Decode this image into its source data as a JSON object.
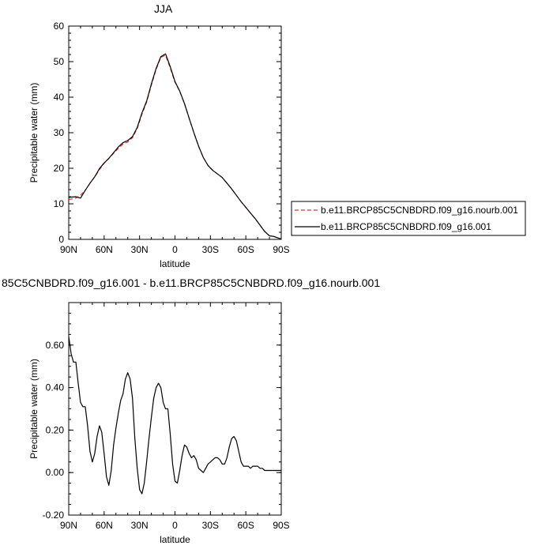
{
  "chart_data": [
    {
      "type": "line",
      "title": "JJA",
      "xlabel": "latitude",
      "ylabel": "Precipitable water (mm)",
      "x_ticks": [
        {
          "value": 90,
          "label": "90N"
        },
        {
          "value": 60,
          "label": "60N"
        },
        {
          "value": 30,
          "label": "30N"
        },
        {
          "value": 0,
          "label": "0"
        },
        {
          "value": -30,
          "label": "30S"
        },
        {
          "value": -60,
          "label": "60S"
        },
        {
          "value": -90,
          "label": "90S"
        }
      ],
      "xlim": [
        90,
        -90
      ],
      "ylim": [
        0,
        60
      ],
      "y_ticks": [
        "0",
        "10",
        "20",
        "30",
        "40",
        "50",
        "60"
      ],
      "grid": false,
      "legend_position": "right",
      "series": [
        {
          "name": "b.e11.BRCP85C5CNBDRD.f09_g16.nourb.001",
          "color": "#e8312a",
          "dash": "dashed",
          "x": [
            90,
            87,
            84,
            80,
            76,
            72,
            68,
            64,
            60,
            56,
            52,
            48,
            44,
            40,
            36,
            32,
            28,
            24,
            20,
            16,
            12,
            8,
            4,
            0,
            -4,
            -8,
            -12,
            -16,
            -20,
            -24,
            -28,
            -32,
            -36,
            -40,
            -44,
            -48,
            -52,
            -56,
            -60,
            -64,
            -68,
            -72,
            -76,
            -80,
            -84,
            -88,
            -90
          ],
          "values": [
            11.2,
            11.4,
            11.6,
            12.4,
            13.8,
            15.8,
            17.6,
            19.6,
            21.4,
            22.8,
            24.2,
            25.6,
            26.8,
            27.4,
            28.6,
            31.2,
            35.2,
            38.6,
            43.4,
            47.8,
            51.2,
            51.8,
            48.2,
            44.2,
            41.6,
            38.2,
            34.0,
            30.0,
            26.2,
            23.0,
            20.8,
            19.4,
            18.4,
            17.4,
            15.8,
            14.2,
            12.4,
            10.6,
            9.0,
            7.4,
            5.8,
            4.0,
            2.2,
            1.0,
            0.8,
            0.3,
            0.1
          ]
        },
        {
          "name": "b.e11.BRCP85C5CNBDRD.f09_g16.001",
          "color": "#000000",
          "dash": "solid",
          "x": [
            90,
            87,
            84,
            80,
            76,
            72,
            68,
            64,
            60,
            56,
            52,
            48,
            44,
            40,
            36,
            32,
            28,
            24,
            20,
            16,
            12,
            8,
            4,
            0,
            -4,
            -8,
            -12,
            -16,
            -20,
            -24,
            -28,
            -32,
            -36,
            -40,
            -44,
            -48,
            -52,
            -56,
            -60,
            -64,
            -68,
            -72,
            -76,
            -80,
            -84,
            -88,
            -90
          ],
          "values": [
            11.8,
            11.9,
            12.0,
            11.6,
            13.8,
            15.8,
            17.6,
            19.9,
            21.5,
            22.8,
            24.4,
            26.0,
            27.2,
            27.8,
            28.9,
            31.5,
            35.6,
            38.9,
            43.7,
            48.1,
            51.4,
            52.2,
            48.6,
            44.4,
            41.7,
            38.2,
            34.1,
            30.0,
            26.2,
            23.0,
            20.8,
            19.4,
            18.4,
            17.4,
            15.8,
            14.2,
            12.4,
            10.6,
            9.0,
            7.4,
            5.8,
            4.0,
            2.2,
            1.0,
            0.8,
            0.3,
            0.1
          ]
        }
      ]
    },
    {
      "type": "line",
      "title": "85C5CNBDRD.f09_g16.001 - b.e11.BRCP85C5CNBDRD.f09_g16.nourb.001",
      "xlabel": "latitude",
      "ylabel": "Precipitable water (mm)",
      "x_ticks": [
        {
          "value": 90,
          "label": "90N"
        },
        {
          "value": 60,
          "label": "60N"
        },
        {
          "value": 30,
          "label": "30N"
        },
        {
          "value": 0,
          "label": "0"
        },
        {
          "value": -30,
          "label": "30S"
        },
        {
          "value": -60,
          "label": "60S"
        },
        {
          "value": -90,
          "label": "90S"
        }
      ],
      "xlim": [
        90,
        -90
      ],
      "ylim": [
        -0.2,
        0.8
      ],
      "y_ticks": [
        "-0.20",
        "0.00",
        "0.20",
        "0.40",
        "0.60"
      ],
      "grid": false,
      "series": [
        {
          "color": "#000000",
          "x": [
            90,
            88,
            86,
            84,
            82,
            80,
            78,
            76,
            74,
            72,
            70,
            68,
            66,
            64,
            62,
            60,
            58,
            56,
            54,
            52,
            50,
            48,
            46,
            44,
            42,
            40,
            38,
            36,
            34,
            32,
            30,
            28,
            26,
            24,
            22,
            20,
            18,
            16,
            14,
            12,
            10,
            8,
            6,
            4,
            2,
            0,
            -2,
            -4,
            -6,
            -8,
            -10,
            -12,
            -14,
            -16,
            -18,
            -20,
            -22,
            -24,
            -26,
            -28,
            -30,
            -32,
            -34,
            -36,
            -38,
            -40,
            -42,
            -44,
            -46,
            -48,
            -50,
            -52,
            -54,
            -56,
            -58,
            -60,
            -62,
            -64,
            -66,
            -68,
            -70,
            -72,
            -74,
            -76,
            -78,
            -80,
            -82,
            -84,
            -86,
            -88,
            -90
          ],
          "values": [
            0.64,
            0.56,
            0.52,
            0.52,
            0.42,
            0.33,
            0.31,
            0.31,
            0.22,
            0.1,
            0.05,
            0.09,
            0.17,
            0.22,
            0.19,
            0.09,
            -0.02,
            -0.06,
            0.01,
            0.13,
            0.21,
            0.28,
            0.34,
            0.37,
            0.44,
            0.47,
            0.44,
            0.35,
            0.16,
            0.02,
            -0.08,
            -0.1,
            -0.05,
            0.05,
            0.16,
            0.26,
            0.35,
            0.4,
            0.42,
            0.4,
            0.33,
            0.3,
            0.3,
            0.18,
            0.04,
            -0.04,
            -0.05,
            0.01,
            0.08,
            0.13,
            0.12,
            0.09,
            0.07,
            0.08,
            0.06,
            0.02,
            0.01,
            0.0,
            0.02,
            0.04,
            0.05,
            0.06,
            0.07,
            0.07,
            0.06,
            0.04,
            0.04,
            0.07,
            0.12,
            0.16,
            0.17,
            0.15,
            0.1,
            0.05,
            0.03,
            0.03,
            0.03,
            0.02,
            0.03,
            0.03,
            0.03,
            0.02,
            0.02,
            0.01,
            0.01,
            0.01,
            0.01,
            0.01,
            0.01,
            0.01,
            0.01
          ]
        }
      ]
    }
  ]
}
